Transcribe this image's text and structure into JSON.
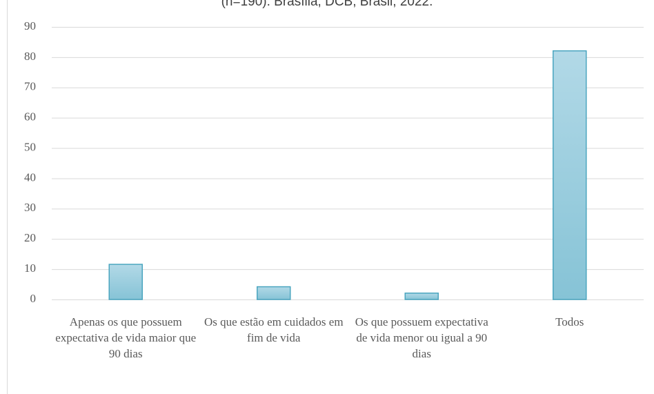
{
  "chart_data": {
    "type": "bar",
    "title": "(n=190). Brasília, DCB, Brasil, 2022.",
    "categories": [
      "Apenas os que possuem expectativa de vida maior que 90 dias",
      "Os que estão em cuidados em fim de vida",
      "Os que possuem expectativa de vida menor ou igual a 90 dias",
      "Todos"
    ],
    "values": [
      11.6,
      4.2,
      2.1,
      82.1
    ],
    "color": "#9dcfe0",
    "ylim": [
      0,
      90
    ],
    "yticks": [
      0,
      10,
      20,
      30,
      40,
      50,
      60,
      70,
      80,
      90
    ],
    "grid": true
  }
}
